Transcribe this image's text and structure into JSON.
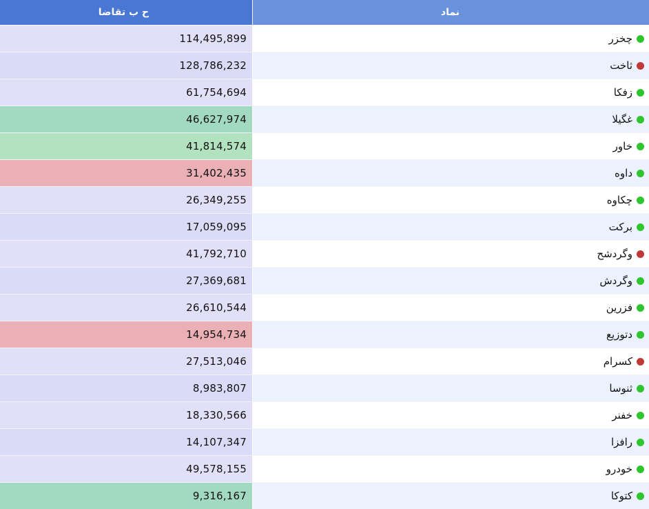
{
  "header": {
    "demand_label": "ح ب تقاضا",
    "symbol_label": "نماد"
  },
  "colors": {
    "header_demand": "#4a77d4",
    "header_symbol": "#6991dc",
    "row_odd_symbol": "#ffffff",
    "row_even_symbol": "#ebf2fd",
    "demand_neutral_a": "#e1e0f8",
    "demand_neutral_b": "#d9dbf7",
    "demand_green_strong": "#a2d9c1",
    "demand_green_light": "#b3e2c0",
    "demand_red": "#ebafb6",
    "status_up": "#2ec52e",
    "status_down": "#c03838"
  },
  "rows": [
    {
      "symbol": "چخزر",
      "demand": "114,495,899",
      "status": "up",
      "tone": "neutral_a"
    },
    {
      "symbol": "ثاخت",
      "demand": "128,786,232",
      "status": "down",
      "tone": "neutral_b"
    },
    {
      "symbol": "زفکا",
      "demand": "61,754,694",
      "status": "up",
      "tone": "neutral_a"
    },
    {
      "symbol": "غگیلا",
      "demand": "46,627,974",
      "status": "up",
      "tone": "green_strong"
    },
    {
      "symbol": "خاور",
      "demand": "41,814,574",
      "status": "up",
      "tone": "green_light"
    },
    {
      "symbol": "داوه",
      "demand": "31,402,435",
      "status": "up",
      "tone": "red"
    },
    {
      "symbol": "چکاوه",
      "demand": "26,349,255",
      "status": "up",
      "tone": "neutral_a"
    },
    {
      "symbol": "برکت",
      "demand": "17,059,095",
      "status": "up",
      "tone": "neutral_b"
    },
    {
      "symbol": "وگردشح",
      "demand": "41,792,710",
      "status": "down",
      "tone": "neutral_a"
    },
    {
      "symbol": "وگردش",
      "demand": "27,369,681",
      "status": "up",
      "tone": "neutral_b"
    },
    {
      "symbol": "فزرین",
      "demand": "26,610,544",
      "status": "up",
      "tone": "neutral_a"
    },
    {
      "symbol": "دتوزیع",
      "demand": "14,954,734",
      "status": "up",
      "tone": "red"
    },
    {
      "symbol": "کسرام",
      "demand": "27,513,046",
      "status": "down",
      "tone": "neutral_a"
    },
    {
      "symbol": "ثنوسا",
      "demand": "8,983,807",
      "status": "up",
      "tone": "neutral_b"
    },
    {
      "symbol": "خفنر",
      "demand": "18,330,566",
      "status": "up",
      "tone": "neutral_a"
    },
    {
      "symbol": "رافزا",
      "demand": "14,107,347",
      "status": "up",
      "tone": "neutral_b"
    },
    {
      "symbol": "خودرو",
      "demand": "49,578,155",
      "status": "up",
      "tone": "neutral_a"
    },
    {
      "symbol": "کتوکا",
      "demand": "9,316,167",
      "status": "up",
      "tone": "green_strong"
    }
  ]
}
